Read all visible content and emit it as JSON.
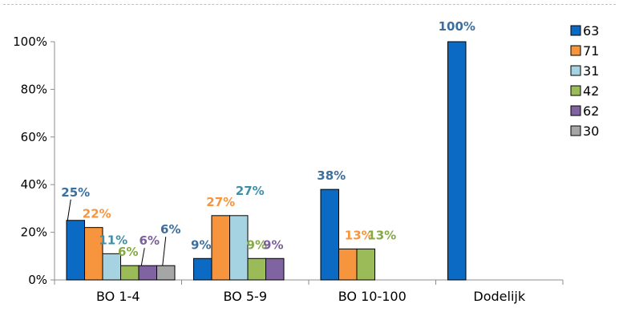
{
  "chart_data": {
    "type": "bar",
    "categories": [
      "BO 1-4",
      "BO 5-9",
      "BO 10-100",
      "Dodelijk"
    ],
    "y_ticks": [
      "0%",
      "20%",
      "40%",
      "60%",
      "80%",
      "100%"
    ],
    "ylim": [
      0,
      100
    ],
    "grid": false,
    "legend_position": "right",
    "series": [
      {
        "name": "63",
        "color": "#0b6ac4",
        "label_color": "#3d6f9e",
        "values": [
          25,
          9,
          38,
          100
        ],
        "labels": [
          "25%",
          "9%",
          "38%",
          "100%"
        ]
      },
      {
        "name": "71",
        "color": "#f7953e",
        "label_color": "#f7953e",
        "values": [
          22,
          27,
          13,
          null
        ],
        "labels": [
          "22%",
          "27%",
          "13%",
          ""
        ]
      },
      {
        "name": "31",
        "color": "#a6d3e2",
        "label_color": "#3f8fa9",
        "values": [
          11,
          27,
          null,
          null
        ],
        "labels": [
          "11%",
          "27%",
          "",
          ""
        ]
      },
      {
        "name": "42",
        "color": "#9bbb59",
        "label_color": "#86a845",
        "values": [
          6,
          9,
          13,
          null
        ],
        "labels": [
          "6%",
          "9%",
          "13%",
          ""
        ]
      },
      {
        "name": "62",
        "color": "#8064a2",
        "label_color": "#7a5f9c",
        "values": [
          6,
          9,
          null,
          null
        ],
        "labels": [
          "6%",
          "9%",
          "",
          ""
        ]
      },
      {
        "name": "30",
        "color": "#a6a6a6",
        "label_color": "#3d6f9e",
        "values": [
          6,
          null,
          null,
          null
        ],
        "labels": [
          "6%",
          "",
          "",
          ""
        ]
      }
    ]
  }
}
